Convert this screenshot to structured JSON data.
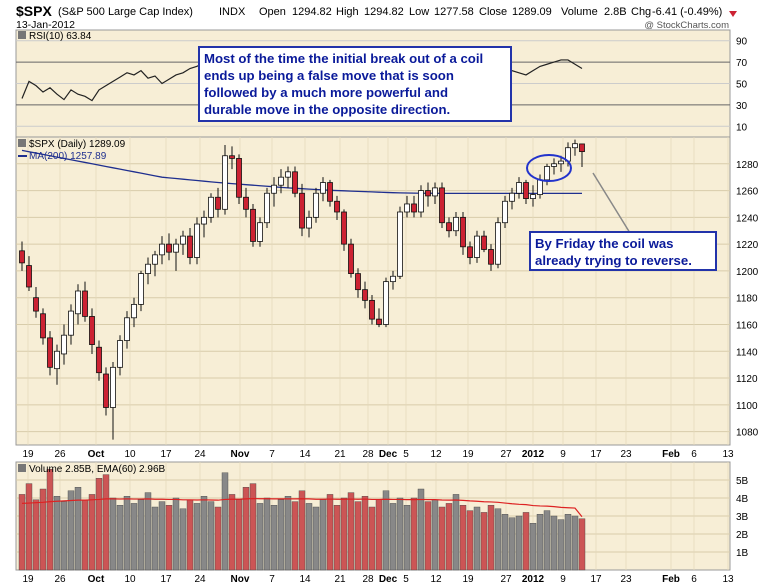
{
  "header": {
    "symbol": "$SPX",
    "name": "(S&P 500 Large Cap Index)",
    "exchange": "INDX",
    "date": "13-Jan-2012",
    "open_label": "Open",
    "open": "1294.82",
    "high_label": "High",
    "high": "1294.82",
    "low_label": "Low",
    "low": "1277.58",
    "close_label": "Close",
    "close": "1289.09",
    "volume_label": "Volume",
    "volume": "2.8B",
    "chg_label": "Chg",
    "chg": "-6.41 (-0.49%)",
    "watermark": "@ StockCharts.com"
  },
  "rsi_panel": {
    "label": "RSI(10) 63.84",
    "ticks": [
      "90",
      "70",
      "50",
      "30",
      "10"
    ]
  },
  "price_panel": {
    "label": "$SPX (Daily) 1289.09",
    "ma_label": "MA(200) 1257.89",
    "ticks": [
      "1280",
      "1260",
      "1240",
      "1220",
      "1200",
      "1180",
      "1160",
      "1140",
      "1120",
      "1100",
      "1080"
    ]
  },
  "volume_panel": {
    "label": "Volume 2.85B, EMA(60) 2.96B",
    "ticks": [
      "5B",
      "4B",
      "3B",
      "2B",
      "1B"
    ]
  },
  "x_axis": [
    "19",
    "26",
    "Oct",
    "10",
    "17",
    "24",
    "Nov",
    "7",
    "14",
    "21",
    "28",
    "Dec",
    "5",
    "12",
    "19",
    "27",
    "2012",
    "9",
    "17",
    "23",
    "Feb",
    "6",
    "13"
  ],
  "annotations": {
    "main_lines": [
      "Most of the time the initial break out of a coil",
      "ends up being a false move that is soon",
      "followed by a much more powerful and",
      "durable move in the opposite direction."
    ],
    "friday_lines": [
      "By Friday the coil was",
      "already trying to reverse."
    ]
  },
  "colors": {
    "up": "#ffffff",
    "down": "#cc2233",
    "ma": "#1f2f8f",
    "rsi": "#222222",
    "vol_up": "#888888",
    "vol_down": "#cc5555",
    "ema": "#dd2222",
    "panel_bg": "#f7eed6",
    "callout": "#2233aa"
  },
  "chart_data": [
    {
      "type": "line",
      "title": "RSI(10) 63.84",
      "ylim": [
        0,
        100
      ],
      "ticks": [
        90,
        70,
        50,
        30,
        10
      ],
      "series": [
        {
          "name": "RSI(10) 63.84",
          "values": [
            36,
            52,
            48,
            42,
            46,
            40,
            35,
            44,
            40,
            38,
            34,
            44,
            48,
            52,
            56,
            60,
            58,
            62,
            55,
            57,
            50,
            54,
            58,
            60,
            64,
            66,
            70,
            72,
            75,
            78,
            73,
            68,
            70,
            66,
            62,
            58,
            54,
            56,
            60,
            58,
            62,
            64,
            66,
            58,
            48,
            42,
            38,
            46,
            50,
            56,
            54,
            57,
            52,
            58,
            54,
            50,
            48,
            46,
            44,
            52,
            56,
            60,
            64,
            62,
            58,
            54,
            48,
            50,
            56,
            60,
            62,
            60,
            58,
            62,
            66,
            68,
            70,
            72,
            72,
            68,
            64
          ]
        }
      ]
    },
    {
      "type": "candlestick",
      "title": "$SPX (Daily) 1289.09",
      "ylim": [
        1070,
        1300
      ],
      "ticks": [
        1280,
        1260,
        1240,
        1220,
        1200,
        1180,
        1160,
        1140,
        1120,
        1100,
        1080
      ],
      "candles": [
        {
          "o": 1215,
          "h": 1222,
          "l": 1200,
          "c": 1206
        },
        {
          "o": 1204,
          "h": 1211,
          "l": 1185,
          "c": 1188
        },
        {
          "o": 1180,
          "h": 1188,
          "l": 1165,
          "c": 1170
        },
        {
          "o": 1168,
          "h": 1172,
          "l": 1145,
          "c": 1150
        },
        {
          "o": 1150,
          "h": 1155,
          "l": 1122,
          "c": 1128
        },
        {
          "o": 1127,
          "h": 1145,
          "l": 1115,
          "c": 1140
        },
        {
          "o": 1138,
          "h": 1160,
          "l": 1130,
          "c": 1152
        },
        {
          "o": 1152,
          "h": 1175,
          "l": 1145,
          "c": 1170
        },
        {
          "o": 1168,
          "h": 1190,
          "l": 1160,
          "c": 1185
        },
        {
          "o": 1185,
          "h": 1192,
          "l": 1162,
          "c": 1166
        },
        {
          "o": 1166,
          "h": 1172,
          "l": 1138,
          "c": 1145
        },
        {
          "o": 1143,
          "h": 1148,
          "l": 1118,
          "c": 1124
        },
        {
          "o": 1123,
          "h": 1128,
          "l": 1092,
          "c": 1098
        },
        {
          "o": 1098,
          "h": 1132,
          "l": 1074,
          "c": 1128
        },
        {
          "o": 1128,
          "h": 1152,
          "l": 1122,
          "c": 1148
        },
        {
          "o": 1148,
          "h": 1170,
          "l": 1142,
          "c": 1165
        },
        {
          "o": 1165,
          "h": 1180,
          "l": 1158,
          "c": 1175
        },
        {
          "o": 1175,
          "h": 1200,
          "l": 1170,
          "c": 1198
        },
        {
          "o": 1198,
          "h": 1210,
          "l": 1190,
          "c": 1205
        },
        {
          "o": 1205,
          "h": 1215,
          "l": 1196,
          "c": 1212
        },
        {
          "o": 1212,
          "h": 1226,
          "l": 1205,
          "c": 1220
        },
        {
          "o": 1220,
          "h": 1228,
          "l": 1208,
          "c": 1214
        },
        {
          "o": 1214,
          "h": 1224,
          "l": 1200,
          "c": 1220
        },
        {
          "o": 1220,
          "h": 1230,
          "l": 1212,
          "c": 1226
        },
        {
          "o": 1226,
          "h": 1232,
          "l": 1205,
          "c": 1210
        },
        {
          "o": 1210,
          "h": 1240,
          "l": 1205,
          "c": 1235
        },
        {
          "o": 1235,
          "h": 1245,
          "l": 1225,
          "c": 1240
        },
        {
          "o": 1240,
          "h": 1258,
          "l": 1236,
          "c": 1255
        },
        {
          "o": 1255,
          "h": 1262,
          "l": 1240,
          "c": 1246
        },
        {
          "o": 1246,
          "h": 1294,
          "l": 1242,
          "c": 1286
        },
        {
          "o": 1286,
          "h": 1293,
          "l": 1276,
          "c": 1284
        },
        {
          "o": 1284,
          "h": 1287,
          "l": 1250,
          "c": 1255
        },
        {
          "o": 1255,
          "h": 1262,
          "l": 1240,
          "c": 1246
        },
        {
          "o": 1246,
          "h": 1250,
          "l": 1218,
          "c": 1222
        },
        {
          "o": 1222,
          "h": 1240,
          "l": 1218,
          "c": 1236
        },
        {
          "o": 1236,
          "h": 1262,
          "l": 1232,
          "c": 1258
        },
        {
          "o": 1258,
          "h": 1270,
          "l": 1248,
          "c": 1264
        },
        {
          "o": 1264,
          "h": 1276,
          "l": 1258,
          "c": 1270
        },
        {
          "o": 1270,
          "h": 1278,
          "l": 1262,
          "c": 1274
        },
        {
          "o": 1274,
          "h": 1278,
          "l": 1255,
          "c": 1258
        },
        {
          "o": 1258,
          "h": 1265,
          "l": 1226,
          "c": 1232
        },
        {
          "o": 1232,
          "h": 1245,
          "l": 1225,
          "c": 1240
        },
        {
          "o": 1240,
          "h": 1262,
          "l": 1236,
          "c": 1258
        },
        {
          "o": 1258,
          "h": 1270,
          "l": 1252,
          "c": 1266
        },
        {
          "o": 1266,
          "h": 1268,
          "l": 1248,
          "c": 1252
        },
        {
          "o": 1252,
          "h": 1256,
          "l": 1238,
          "c": 1244
        },
        {
          "o": 1244,
          "h": 1246,
          "l": 1215,
          "c": 1220
        },
        {
          "o": 1220,
          "h": 1224,
          "l": 1195,
          "c": 1198
        },
        {
          "o": 1198,
          "h": 1202,
          "l": 1180,
          "c": 1186
        },
        {
          "o": 1186,
          "h": 1192,
          "l": 1172,
          "c": 1178
        },
        {
          "o": 1178,
          "h": 1182,
          "l": 1160,
          "c": 1164
        },
        {
          "o": 1164,
          "h": 1172,
          "l": 1158,
          "c": 1160
        },
        {
          "o": 1160,
          "h": 1195,
          "l": 1158,
          "c": 1192
        },
        {
          "o": 1192,
          "h": 1200,
          "l": 1186,
          "c": 1196
        },
        {
          "o": 1196,
          "h": 1248,
          "l": 1194,
          "c": 1244
        },
        {
          "o": 1244,
          "h": 1256,
          "l": 1240,
          "c": 1250
        },
        {
          "o": 1250,
          "h": 1256,
          "l": 1240,
          "c": 1244
        },
        {
          "o": 1244,
          "h": 1264,
          "l": 1240,
          "c": 1260
        },
        {
          "o": 1260,
          "h": 1266,
          "l": 1248,
          "c": 1256
        },
        {
          "o": 1256,
          "h": 1266,
          "l": 1250,
          "c": 1262
        },
        {
          "o": 1262,
          "h": 1266,
          "l": 1232,
          "c": 1236
        },
        {
          "o": 1236,
          "h": 1240,
          "l": 1225,
          "c": 1230
        },
        {
          "o": 1230,
          "h": 1244,
          "l": 1226,
          "c": 1240
        },
        {
          "o": 1240,
          "h": 1244,
          "l": 1212,
          "c": 1218
        },
        {
          "o": 1218,
          "h": 1222,
          "l": 1205,
          "c": 1210
        },
        {
          "o": 1210,
          "h": 1230,
          "l": 1206,
          "c": 1226
        },
        {
          "o": 1226,
          "h": 1230,
          "l": 1214,
          "c": 1216
        },
        {
          "o": 1216,
          "h": 1220,
          "l": 1200,
          "c": 1205
        },
        {
          "o": 1205,
          "h": 1240,
          "l": 1202,
          "c": 1236
        },
        {
          "o": 1236,
          "h": 1256,
          "l": 1232,
          "c": 1252
        },
        {
          "o": 1252,
          "h": 1262,
          "l": 1246,
          "c": 1258
        },
        {
          "o": 1258,
          "h": 1270,
          "l": 1254,
          "c": 1266
        },
        {
          "o": 1266,
          "h": 1268,
          "l": 1250,
          "c": 1254
        },
        {
          "o": 1254,
          "h": 1264,
          "l": 1248,
          "c": 1257
        },
        {
          "o": 1257,
          "h": 1272,
          "l": 1254,
          "c": 1268
        },
        {
          "o": 1268,
          "h": 1280,
          "l": 1264,
          "c": 1278
        },
        {
          "o": 1278,
          "h": 1284,
          "l": 1272,
          "c": 1280
        },
        {
          "o": 1280,
          "h": 1286,
          "l": 1274,
          "c": 1282
        },
        {
          "o": 1282,
          "h": 1296,
          "l": 1278,
          "c": 1292
        },
        {
          "o": 1292,
          "h": 1298,
          "l": 1286,
          "c": 1295
        },
        {
          "o": 1294.82,
          "h": 1294.82,
          "l": 1277.58,
          "c": 1289.09
        }
      ],
      "ma200": [
        1290,
        1289,
        1288,
        1287,
        1286,
        1285,
        1284,
        1283,
        1282,
        1281,
        1280,
        1279,
        1278,
        1277,
        1276,
        1275,
        1274,
        1273,
        1272,
        1271,
        1270,
        1269.5,
        1269,
        1268.5,
        1268,
        1267.5,
        1267,
        1266.5,
        1266,
        1265.6,
        1265.2,
        1264.8,
        1264.4,
        1264,
        1263.6,
        1263.2,
        1262.8,
        1262.4,
        1262,
        1261.7,
        1261.4,
        1261.1,
        1260.8,
        1260.5,
        1260.2,
        1260,
        1259.8,
        1259.6,
        1259.4,
        1259.2,
        1259,
        1258.8,
        1258.6,
        1258.4,
        1258.3,
        1258.2,
        1258.1,
        1258,
        1258,
        1258,
        1257.9,
        1257.9,
        1257.9,
        1257.9,
        1257.9,
        1257.9,
        1257.9,
        1257.9,
        1257.9,
        1257.9,
        1257.9,
        1257.9,
        1257.9,
        1257.9,
        1257.9,
        1257.9,
        1257.9,
        1257.9,
        1257.9,
        1257.89,
        1257.89
      ]
    },
    {
      "type": "bar",
      "title": "Volume 2.85B, EMA(60) 2.96B",
      "ylim": [
        0,
        6
      ],
      "ticks": [
        5,
        4,
        3,
        2,
        1
      ],
      "values": [
        4.2,
        4.8,
        3.9,
        4.5,
        5.6,
        4.1,
        3.8,
        4.4,
        4.6,
        3.9,
        4.2,
        5.1,
        5.3,
        4.0,
        3.6,
        4.1,
        3.7,
        3.9,
        4.3,
        3.5,
        3.8,
        3.6,
        4.0,
        3.4,
        3.9,
        3.7,
        4.1,
        3.8,
        3.5,
        5.4,
        4.2,
        3.9,
        4.6,
        4.8,
        3.7,
        4.0,
        3.6,
        3.9,
        4.1,
        3.8,
        4.4,
        3.7,
        3.5,
        3.9,
        4.2,
        3.6,
        4.0,
        4.3,
        3.8,
        4.1,
        3.5,
        3.9,
        4.4,
        3.7,
        4.0,
        3.6,
        4.0,
        4.5,
        3.8,
        3.9,
        3.5,
        3.7,
        4.2,
        3.6,
        3.3,
        3.5,
        3.2,
        3.6,
        3.4,
        3.1,
        2.9,
        3.0,
        3.2,
        2.6,
        3.1,
        3.3,
        3.0,
        2.8,
        3.1,
        3.0,
        2.85
      ],
      "ema": [
        3.7,
        3.72,
        3.74,
        3.76,
        3.8,
        3.82,
        3.84,
        3.86,
        3.88,
        3.88,
        3.9,
        3.92,
        3.95,
        3.95,
        3.94,
        3.95,
        3.94,
        3.94,
        3.95,
        3.93,
        3.93,
        3.92,
        3.92,
        3.9,
        3.9,
        3.89,
        3.9,
        3.89,
        3.88,
        3.92,
        3.93,
        3.93,
        3.95,
        3.97,
        3.96,
        3.96,
        3.95,
        3.95,
        3.95,
        3.95,
        3.96,
        3.95,
        3.93,
        3.93,
        3.94,
        3.93,
        3.93,
        3.94,
        3.93,
        3.94,
        3.92,
        3.92,
        3.93,
        3.92,
        3.92,
        3.91,
        3.91,
        3.92,
        3.91,
        3.91,
        3.89,
        3.88,
        3.89,
        3.87,
        3.84,
        3.82,
        3.79,
        3.78,
        3.76,
        3.72,
        3.68,
        3.65,
        3.63,
        3.58,
        3.56,
        3.55,
        3.52,
        3.48,
        3.46,
        3.44,
        2.96
      ]
    }
  ]
}
